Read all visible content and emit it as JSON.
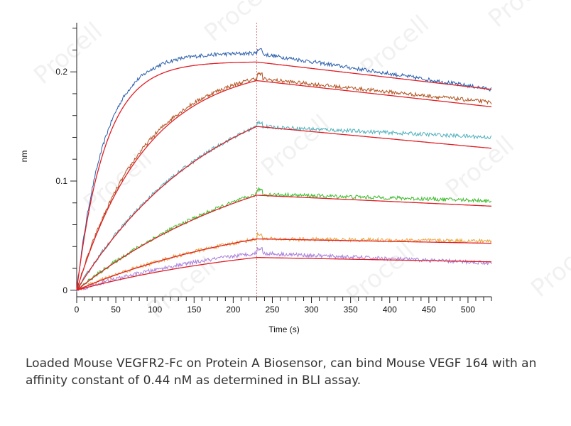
{
  "chart_data": {
    "type": "line",
    "xlabel": "Time (s)",
    "ylabel": "nm",
    "xlim": [
      0,
      530
    ],
    "ylim": [
      -0.006,
      0.245
    ],
    "x_ticks": [
      0,
      50,
      100,
      150,
      200,
      250,
      300,
      350,
      400,
      450,
      500
    ],
    "y_ticks": [
      0,
      0.1,
      0.2
    ],
    "y_tick_labels": [
      "0",
      "0.1",
      "0.2"
    ],
    "minor_x_step": 10,
    "minor_y_step": 0.02,
    "association_end": 230,
    "end_time": 530,
    "marker_line_color": "#e07070",
    "fit_color": "#e01f26",
    "series": [
      {
        "color": "#2b5fad",
        "measured": {
          "plateau": 0.217,
          "end": 0.184
        },
        "fit": {
          "plateau": 0.209,
          "end": 0.184
        },
        "rate": 0.028
      },
      {
        "color": "#b0531f",
        "measured": {
          "plateau": 0.194,
          "end": 0.172
        },
        "fit": {
          "plateau": 0.192,
          "end": 0.168
        },
        "rate": 0.0115
      },
      {
        "color": "#4fb0bd",
        "measured": {
          "plateau": 0.15,
          "end": 0.14
        },
        "fit": {
          "plateau": 0.15,
          "end": 0.13
        },
        "rate": 0.0058
      },
      {
        "color": "#3cba2c",
        "measured": {
          "plateau": 0.088,
          "end": 0.082
        },
        "fit": {
          "plateau": 0.087,
          "end": 0.077
        },
        "rate": 0.004
      },
      {
        "color": "#e8a23a",
        "measured": {
          "plateau": 0.047,
          "end": 0.045
        },
        "fit": {
          "plateau": 0.047,
          "end": 0.043
        },
        "rate": 0.004
      },
      {
        "color": "#a97fd9",
        "measured": {
          "plateau": 0.034,
          "end": 0.025
        },
        "fit": {
          "plateau": 0.03,
          "end": 0.026
        },
        "rate": 0.004
      }
    ]
  },
  "watermark_text": "Procell",
  "caption": "Loaded Mouse VEGFR2-Fc on Protein A Biosensor, can bind Mouse VEGF 164 with an affinity constant of 0.44 nM as determined in BLI assay."
}
